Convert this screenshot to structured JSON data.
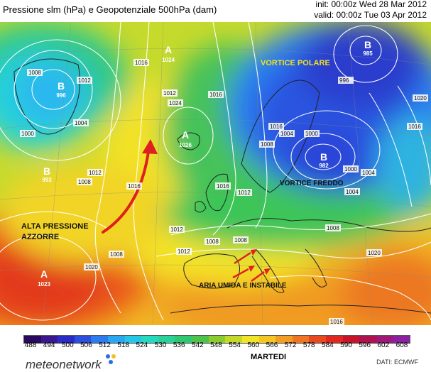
{
  "header": {
    "title": "Pressione slm (hPa) e Geopotenziale 500hPa (dam)",
    "init": "init: 00:00z Wed 28 Mar 2012",
    "valid": "valid: 00:00z Tue 03 Apr 2012"
  },
  "map": {
    "annotations": {
      "vortice_polare": "VORTICE POLARE",
      "vortice_freddo": "VORTICE FREDDO",
      "alta_pressione_1": "ALTA PRESSIONE",
      "alta_pressione_2": "AZZORRE",
      "aria_umida": "ARIA UMIDA E INSTABILE"
    },
    "pressure_centers": [
      {
        "type": "A",
        "value": "1024"
      },
      {
        "type": "A",
        "value": "1026"
      },
      {
        "type": "A",
        "value": "1023"
      },
      {
        "type": "B",
        "value": "996"
      },
      {
        "type": "B",
        "value": "993"
      },
      {
        "type": "B",
        "value": "985"
      },
      {
        "type": "B",
        "value": "982"
      }
    ],
    "isobar_labels": [
      "1008",
      "1016",
      "1012",
      "1004",
      "1000",
      "1012",
      "1008",
      "1020",
      "1016",
      "1012",
      "1024",
      "1016",
      "996",
      "1008",
      "1004",
      "1012",
      "1004",
      "1000",
      "1016",
      "1008",
      "1008",
      "1012",
      "1008",
      "1008",
      "1004",
      "1000",
      "1012",
      "1016",
      "1020",
      "1016",
      "1016",
      "1020"
    ]
  },
  "colorbar": {
    "ticks": [
      "488",
      "494",
      "500",
      "506",
      "512",
      "518",
      "524",
      "530",
      "536",
      "542",
      "548",
      "554",
      "560",
      "566",
      "572",
      "578",
      "584",
      "590",
      "596",
      "602",
      "608"
    ],
    "colors": [
      "#2a0a5e",
      "#3a1890",
      "#2b2cc8",
      "#2c4fe0",
      "#2c7cf0",
      "#2aa7f2",
      "#28c6e6",
      "#26d8c0",
      "#2ad29a",
      "#2fc872",
      "#4fc24c",
      "#8acb2f",
      "#c4d82a",
      "#f0e426",
      "#f4c624",
      "#f29e22",
      "#ef7520",
      "#e84a20",
      "#e0281e",
      "#c8142a",
      "#b01250",
      "#a01878",
      "#8c20a0"
    ],
    "label": "MARTEDI"
  },
  "footer": {
    "logo_text": "meteonetwork",
    "source": "DATI: ECMWF"
  }
}
